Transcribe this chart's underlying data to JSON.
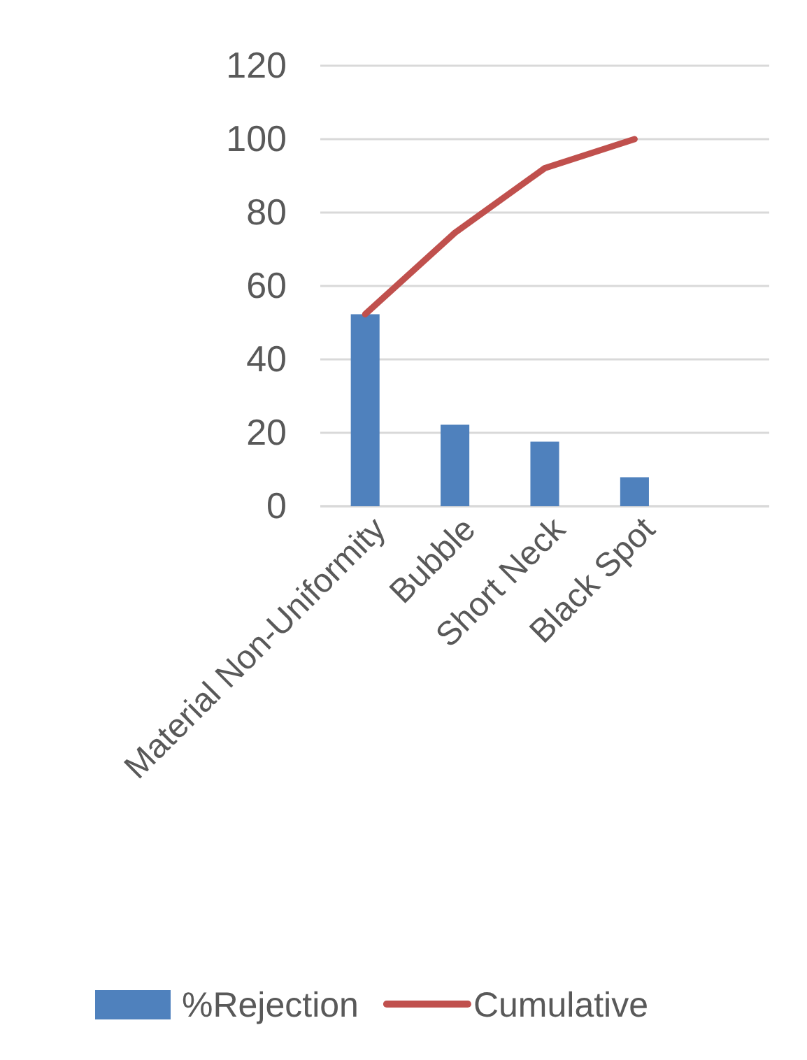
{
  "chart_data": {
    "type": "bar",
    "categories": [
      "Material Non-Uniformity",
      "Bubble",
      "Short Neck",
      "Black Spot",
      null
    ],
    "series": [
      {
        "name": "%Rejection",
        "color": "#4f81bd",
        "values": [
          52.3,
          22.2,
          17.6,
          7.9,
          null
        ]
      },
      {
        "name": "Cumulative",
        "type": "line",
        "color": "#c0504d",
        "values": [
          52.3,
          74.5,
          92.1,
          100,
          null
        ]
      }
    ],
    "ylim": [
      0,
      120
    ],
    "yticks": [
      0,
      20,
      40,
      60,
      80,
      100,
      120
    ],
    "grid": "y",
    "legend": "bottom",
    "marker": "none",
    "line_style": "solid"
  }
}
